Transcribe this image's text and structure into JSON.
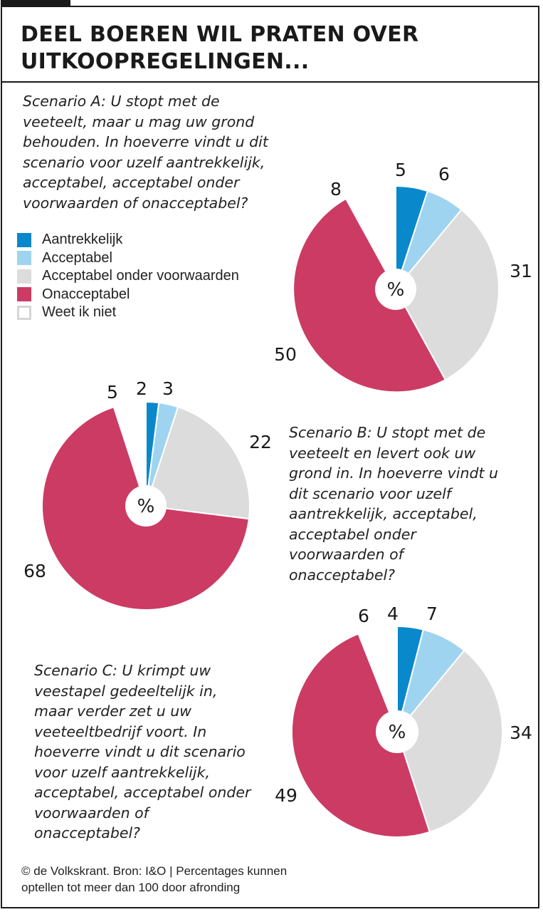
{
  "title": "DEEL BOEREN WIL PRATEN OVER UITKOOPREGELINGEN...",
  "colors": {
    "aantrekkelijk": "#0a88cc",
    "acceptabel": "#9fd4f0",
    "acceptabel_onder_voorwaarden": "#dcdcdc",
    "onacceptabel": "#cc3b64",
    "weet_ik_niet": "#ffffff"
  },
  "legend": [
    {
      "label": "Aantrekkelijk",
      "color": "#0a88cc"
    },
    {
      "label": "Acceptabel",
      "color": "#9fd4f0"
    },
    {
      "label": "Acceptabel onder voorwaarden",
      "color": "#dcdcdc"
    },
    {
      "label": "Onacceptabel",
      "color": "#cc3b64"
    },
    {
      "label": "Weet ik niet",
      "color": "#ffffff"
    }
  ],
  "questions": [
    [
      "Scenario A: U stopt met de",
      "veeteelt, maar u mag uw grond",
      "behouden. In hoeverre vindt u dit",
      "scenario voor uzelf aantrekkelijk,",
      "acceptabel, acceptabel onder",
      "voorwaarden of onacceptabel?"
    ],
    [
      "Scenario B: U stopt met de",
      "veeteelt en levert ook uw",
      "grond in. In hoeverre vindt u",
      "dit scenario voor uzelf",
      "aantrekkelijk, acceptabel,",
      "acceptabel onder",
      "voorwaarden of",
      "onacceptabel?"
    ],
    [
      "Scenario C: U krimpt uw",
      "veestapel gedeeltelijk in,",
      "maar verder zet u uw",
      "veeteeltbedrijf voort. In",
      "hoeverre vindt u dit scenario",
      "voor uzelf aantrekkelijk,",
      "acceptabel, acceptabel onder",
      "voorwaarden of",
      "onacceptabel?"
    ]
  ],
  "center_label": "%",
  "chart_data": [
    {
      "type": "pie",
      "title": "Scenario A",
      "categories": [
        "Aantrekkelijk",
        "Acceptabel",
        "Acceptabel onder voorwaarden",
        "Onacceptabel",
        "Weet ik niet"
      ],
      "values": [
        5,
        6,
        31,
        50,
        8
      ],
      "unit": "%"
    },
    {
      "type": "pie",
      "title": "Scenario B",
      "categories": [
        "Aantrekkelijk",
        "Acceptabel",
        "Acceptabel onder voorwaarden",
        "Onacceptabel",
        "Weet ik niet"
      ],
      "values": [
        2,
        3,
        22,
        68,
        5
      ],
      "unit": "%"
    },
    {
      "type": "pie",
      "title": "Scenario C",
      "categories": [
        "Aantrekkelijk",
        "Acceptabel",
        "Acceptabel onder voorwaarden",
        "Onacceptabel",
        "Weet ik niet"
      ],
      "values": [
        4,
        7,
        34,
        49,
        6
      ],
      "unit": "%"
    }
  ],
  "source": [
    "© de Volkskrant. Bron: I&O | Percentages kunnen",
    "optellen tot meer dan 100 door afronding"
  ]
}
